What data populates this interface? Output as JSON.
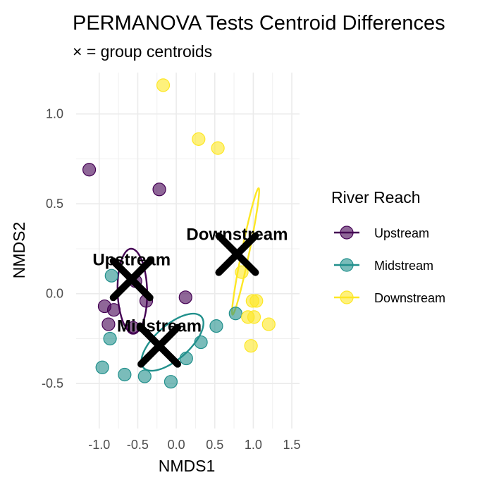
{
  "chart_data": {
    "type": "scatter",
    "title": "PERMANOVA Tests Centroid Differences",
    "subtitle": "× = group centroids",
    "xlabel": "NMDS1",
    "ylabel": "NMDS2",
    "xlim": [
      -1.3,
      1.6
    ],
    "ylim": [
      -0.75,
      1.23
    ],
    "x_ticks": [
      -1.0,
      -0.5,
      0.0,
      0.5,
      1.0,
      1.5
    ],
    "x_tick_labels": [
      "-1.0",
      "-0.5",
      "0.0",
      "0.5",
      "1.0",
      "1.5"
    ],
    "y_ticks": [
      -0.5,
      0.0,
      0.5,
      1.0
    ],
    "y_tick_labels": [
      "-0.5",
      "0.0",
      "0.5",
      "1.0"
    ],
    "grid": true,
    "legend": {
      "title": "River Reach",
      "placement": "right"
    },
    "series": [
      {
        "name": "Upstream",
        "color": "#440154",
        "x": [
          -1.13,
          -0.22,
          -0.53,
          -0.39,
          -0.93,
          -0.81,
          -0.88,
          -0.56,
          0.12
        ],
        "y": [
          0.69,
          0.58,
          0.07,
          -0.04,
          -0.07,
          -0.09,
          -0.17,
          -0.19,
          -0.02
        ],
        "centroid": [
          -0.58,
          0.08
        ],
        "ellipse": {
          "cx": -0.57,
          "cy": 0.015,
          "rx": 0.52,
          "ry": 0.42,
          "angle_deg": 100
        }
      },
      {
        "name": "Midstream",
        "color": "#21908C",
        "x": [
          -0.84,
          -0.86,
          -0.96,
          -0.67,
          -0.41,
          -0.07,
          0.13,
          0.32,
          0.52,
          0.77
        ],
        "y": [
          0.1,
          -0.25,
          -0.41,
          -0.45,
          -0.46,
          -0.49,
          -0.36,
          -0.27,
          -0.18,
          -0.11
        ],
        "centroid": [
          -0.22,
          -0.29
        ],
        "ellipse": {
          "cx": -0.05,
          "cy": -0.27,
          "rx": 0.92,
          "ry": 0.25,
          "angle_deg": 16
        }
      },
      {
        "name": "Downstream",
        "color": "#FDE725",
        "x": [
          -0.17,
          0.29,
          0.54,
          0.85,
          0.99,
          1.04,
          0.93,
          1.01,
          1.2,
          0.97
        ],
        "y": [
          1.16,
          0.86,
          0.81,
          0.12,
          -0.04,
          -0.04,
          -0.13,
          -0.13,
          -0.17,
          -0.29
        ],
        "centroid": [
          0.79,
          0.22
        ],
        "ellipse": {
          "cx": 0.9,
          "cy": 0.235,
          "rx": 0.86,
          "ry": 0.1,
          "angle_deg": 64
        }
      }
    ]
  }
}
